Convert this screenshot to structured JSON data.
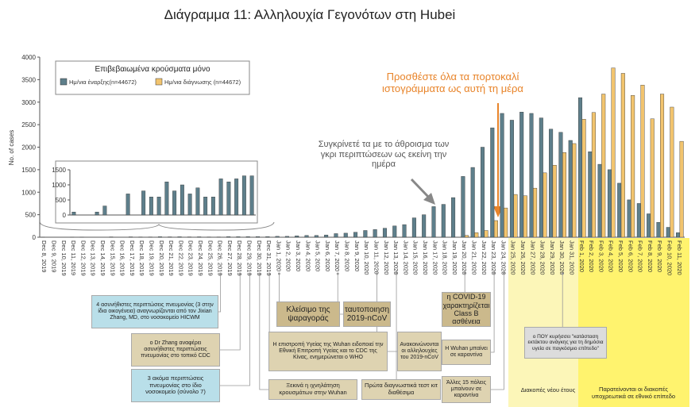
{
  "chart_data": [
    {
      "type": "bar",
      "title": "Διάγραμμα 11: Αλληλουχία Γεγονότων στη Hubei",
      "ylabel": "No. of cases",
      "legend_title": "Επιβεβαιωμένα κρούσματα μόνο",
      "categories": [
        "Dec 8, 2019",
        "Dec 9, 2019",
        "Dec 10, 2019",
        "Dec 11, 2019",
        "Dec 12, 2019",
        "Dec 13, 2019",
        "Dec 14, 2019",
        "Dec 15, 2019",
        "Dec 16, 2019",
        "Dec 17, 2019",
        "Dec 18, 2019",
        "Dec 19, 2019",
        "Dec 20, 2019",
        "Dec 21, 2019",
        "Dec 22, 2019",
        "Dec 23, 2019",
        "Dec 24, 2019",
        "Dec 25, 2019",
        "Dec 26, 2019",
        "Dec 27, 2019",
        "Dec 28, 2019",
        "Dec 29, 2019",
        "Dec 30, 2019",
        "Dec 31, 2019",
        "Jan 1, 2020",
        "Jan 2, 2020",
        "Jan 3, 2020",
        "Jan 4, 2020",
        "Jan 5, 2020",
        "Jan 6, 2020",
        "Jan 7, 2020",
        "Jan 8, 2020",
        "Jan 9, 2020",
        "Jan 10, 2020",
        "Jan 11, 2020",
        "Jan 12, 2020",
        "Jan 13, 2020",
        "Jan 14, 2020",
        "Jan 15, 2020",
        "Jan 16, 2020",
        "Jan 17, 2020",
        "Jan 18, 2020",
        "Jan 19, 2020",
        "Jan 20, 2020",
        "Jan 21, 2020",
        "Jan 22, 2020",
        "Jan 23, 2020",
        "Jan 24, 2020",
        "Jan 25, 2020",
        "Jan 26, 2020",
        "Jan 27, 2020",
        "Jan 28, 2020",
        "Jan 29, 2020",
        "Jan 30, 2020",
        "Jan 31, 2020",
        "Feb 1, 2020",
        "Feb 2, 2020",
        "Feb 3, 2020",
        "Feb 4, 2020",
        "Feb 5, 2020",
        "Feb 6, 2020",
        "Feb 7, 2020",
        "Feb 8, 2020",
        "Feb 9, 2020",
        "Feb 10, 2020",
        "Feb 11, 2020"
      ],
      "series": [
        {
          "name": "Ημ/νια έναρξης(n=44672)",
          "color": "#5e7f8b",
          "values": [
            1,
            0,
            0,
            1,
            3,
            0,
            0,
            7,
            0,
            8,
            6,
            6,
            11,
            8,
            10,
            7,
            9,
            6,
            6,
            12,
            11,
            12,
            13,
            13,
            20,
            20,
            30,
            40,
            40,
            50,
            80,
            90,
            110,
            150,
            170,
            200,
            250,
            280,
            430,
            500,
            680,
            730,
            880,
            1350,
            1550,
            2000,
            2430,
            2750,
            2600,
            2780,
            2750,
            2650,
            2400,
            2330,
            2150,
            3100,
            1900,
            1620,
            1500,
            1200,
            830,
            750,
            520,
            330,
            220,
            100
          ]
        },
        {
          "name": "Ημ/νια διάγνωσης (n=44672)",
          "color": "#f2c46e",
          "values": [
            0,
            0,
            0,
            0,
            0,
            0,
            0,
            0,
            0,
            0,
            0,
            0,
            0,
            0,
            0,
            0,
            0,
            0,
            0,
            0,
            0,
            0,
            0,
            0,
            0,
            0,
            0,
            0,
            0,
            0,
            0,
            0,
            0,
            0,
            0,
            0,
            0,
            0,
            0,
            0,
            0,
            0,
            0,
            40,
            100,
            150,
            370,
            650,
            950,
            920,
            1090,
            1430,
            1600,
            1880,
            2080,
            2620,
            2770,
            3180,
            3760,
            3640,
            3150,
            3380,
            2630,
            3180,
            2890,
            2130
          ]
        }
      ],
      "ylim": [
        0,
        4000
      ],
      "yticks": [
        0,
        500,
        1000,
        1500,
        2000,
        2500,
        3000,
        3500,
        4000
      ],
      "annotations": [
        "Προσθέστε όλα τα πορτοκαλί ιστογράμματα ως αυτή τη μέρα",
        "Συγκρίνετέ τα με το άθροισμα των γκρι περιπτώσεων ως εκείνη την ημέρα",
        "4 ασυνήθιστες περιπτώσεις πνευμονίας (3 στην ίδια οικογένεια) αναγνωρίζονται από τον Jixian Zhang, MD, στο νοσοκομείο HICWM",
        "ο Dr Zhang αναφέρει ασυνήθιστες περιπτώσεις πνευμονίας στο τοπικό CDC",
        "3 ακόμα περιπτώσεις πνευμονίας στο ίδιο νοσοκομείο (σύνολο 7)",
        "Κλείσιμο της ψαραγοράς",
        "ταυτοποιηση 2019-nCoV",
        "Η επιστροπή Υγείας της Wuhan ειδοποιεί την Εθνική Επιτροπή Υγείας και το CDC της Κίνας, ενημερώνεται ο WHO",
        "Ξεκινά η ιχνηλάτηση κρουσμάτων στην Wuhan",
        "Ανακοινώνονται οι αλληλουχίες του 2019-nCoV",
        "Πρώτα διαγνωστικά τεστ κιτ διαθέσιμα",
        "η COVID-19 χαρακτηρίζεται Class B ασθένεια",
        "Η Wuhan μπαίνει σε καραντίνα",
        "Άλλες 15 πόλεις μπαίνουν σε καραντίνα",
        "ο ΠΟΥ κυρήσσει \"κατάσταση εκτάκτου ανάγκης για τη δημόσια υγεία σε παγκόσμιο επίπεδο\"",
        "Διακοπές νέου έτους",
        "Παρατείνονται οι διακοπές υποχρεωτικά σε εθνικό επίπεδο"
      ]
    },
    {
      "type": "bar",
      "color": "#5e7f8b",
      "values": [
        100,
        0,
        0,
        100,
        300,
        0,
        0,
        700,
        0,
        800,
        600,
        600,
        1100,
        800,
        1000,
        700,
        900,
        600,
        600,
        1200,
        1100,
        1200,
        1300,
        1300
      ],
      "ylim": [
        0,
        1500
      ],
      "yticks": [
        0,
        500,
        1000,
        1500
      ]
    }
  ]
}
